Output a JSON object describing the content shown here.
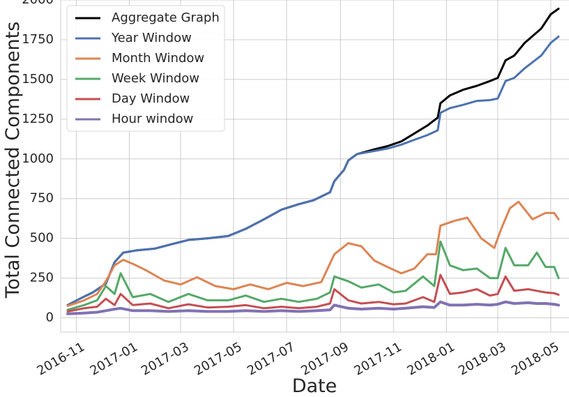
{
  "chart_data": {
    "type": "line",
    "xlabel": "Date",
    "ylabel": "Total Connected Components",
    "x_tick_labels": [
      "2016-11",
      "2017-01",
      "2017-03",
      "2017-05",
      "2017-07",
      "2017-09",
      "2017-11",
      "2018-01",
      "2018-03",
      "2018-05"
    ],
    "x_tick_dates": [
      "2016-11-01",
      "2017-01-01",
      "2017-03-01",
      "2017-05-01",
      "2017-07-01",
      "2017-09-01",
      "2017-11-01",
      "2018-01-01",
      "2018-03-01",
      "2018-05-01"
    ],
    "y_tick_labels": [
      "0",
      "250",
      "500",
      "750",
      "1000",
      "1250",
      "1500",
      "1750",
      "2000"
    ],
    "y_tick_values": [
      0,
      250,
      500,
      750,
      1000,
      1250,
      1500,
      1750,
      2000
    ],
    "xlim": [
      "2016-10-14",
      "2018-05-22"
    ],
    "ylim": [
      -90,
      2000
    ],
    "grid": true,
    "legend_position": "top-left",
    "series": [
      {
        "name": "Aggregate Graph",
        "color": "#000000",
        "points": [
          [
            "2016-10-22",
            80
          ],
          [
            "2016-11-05",
            120
          ],
          [
            "2016-11-20",
            160
          ],
          [
            "2016-12-05",
            215
          ],
          [
            "2016-12-15",
            350
          ],
          [
            "2016-12-25",
            410
          ],
          [
            "2017-01-10",
            425
          ],
          [
            "2017-01-30",
            435
          ],
          [
            "2017-02-20",
            465
          ],
          [
            "2017-03-10",
            490
          ],
          [
            "2017-04-01",
            500
          ],
          [
            "2017-04-25",
            515
          ],
          [
            "2017-05-15",
            560
          ],
          [
            "2017-06-05",
            620
          ],
          [
            "2017-06-25",
            680
          ],
          [
            "2017-07-15",
            715
          ],
          [
            "2017-08-01",
            740
          ],
          [
            "2017-08-20",
            790
          ],
          [
            "2017-08-25",
            860
          ],
          [
            "2017-09-05",
            930
          ],
          [
            "2017-09-10",
            990
          ],
          [
            "2017-09-20",
            1030
          ],
          [
            "2017-10-10",
            1060
          ],
          [
            "2017-10-25",
            1080
          ],
          [
            "2017-11-10",
            1110
          ],
          [
            "2017-11-25",
            1160
          ],
          [
            "2017-12-10",
            1210
          ],
          [
            "2017-12-22",
            1260
          ],
          [
            "2017-12-25",
            1350
          ],
          [
            "2018-01-05",
            1400
          ],
          [
            "2018-01-20",
            1435
          ],
          [
            "2018-02-05",
            1460
          ],
          [
            "2018-02-20",
            1490
          ],
          [
            "2018-03-01",
            1510
          ],
          [
            "2018-03-10",
            1620
          ],
          [
            "2018-03-20",
            1650
          ],
          [
            "2018-04-01",
            1730
          ],
          [
            "2018-04-20",
            1820
          ],
          [
            "2018-05-01",
            1910
          ],
          [
            "2018-05-10",
            1945
          ]
        ]
      },
      {
        "name": "Year Window",
        "color": "#4c72b0",
        "points": [
          [
            "2016-10-22",
            80
          ],
          [
            "2016-11-05",
            120
          ],
          [
            "2016-11-20",
            160
          ],
          [
            "2016-12-05",
            215
          ],
          [
            "2016-12-15",
            350
          ],
          [
            "2016-12-25",
            410
          ],
          [
            "2017-01-10",
            425
          ],
          [
            "2017-01-30",
            435
          ],
          [
            "2017-02-20",
            465
          ],
          [
            "2017-03-10",
            490
          ],
          [
            "2017-04-01",
            500
          ],
          [
            "2017-04-25",
            515
          ],
          [
            "2017-05-15",
            560
          ],
          [
            "2017-06-05",
            620
          ],
          [
            "2017-06-25",
            680
          ],
          [
            "2017-07-15",
            715
          ],
          [
            "2017-08-01",
            740
          ],
          [
            "2017-08-20",
            790
          ],
          [
            "2017-08-25",
            860
          ],
          [
            "2017-09-05",
            930
          ],
          [
            "2017-09-10",
            990
          ],
          [
            "2017-09-20",
            1030
          ],
          [
            "2017-10-10",
            1050
          ],
          [
            "2017-10-25",
            1065
          ],
          [
            "2017-11-10",
            1090
          ],
          [
            "2017-11-25",
            1120
          ],
          [
            "2017-12-10",
            1150
          ],
          [
            "2017-12-22",
            1180
          ],
          [
            "2017-12-25",
            1290
          ],
          [
            "2018-01-05",
            1320
          ],
          [
            "2018-01-20",
            1340
          ],
          [
            "2018-02-05",
            1365
          ],
          [
            "2018-02-20",
            1370
          ],
          [
            "2018-03-01",
            1380
          ],
          [
            "2018-03-10",
            1490
          ],
          [
            "2018-03-20",
            1510
          ],
          [
            "2018-04-01",
            1570
          ],
          [
            "2018-04-20",
            1650
          ],
          [
            "2018-05-01",
            1730
          ],
          [
            "2018-05-10",
            1770
          ]
        ]
      },
      {
        "name": "Month Window",
        "color": "#dd8452",
        "points": [
          [
            "2016-10-22",
            75
          ],
          [
            "2016-11-10",
            110
          ],
          [
            "2016-11-25",
            150
          ],
          [
            "2016-12-05",
            230
          ],
          [
            "2016-12-15",
            330
          ],
          [
            "2016-12-25",
            365
          ],
          [
            "2017-01-05",
            340
          ],
          [
            "2017-01-20",
            300
          ],
          [
            "2017-02-10",
            235
          ],
          [
            "2017-03-01",
            210
          ],
          [
            "2017-03-20",
            255
          ],
          [
            "2017-04-10",
            200
          ],
          [
            "2017-05-01",
            180
          ],
          [
            "2017-05-20",
            210
          ],
          [
            "2017-06-10",
            180
          ],
          [
            "2017-07-01",
            220
          ],
          [
            "2017-07-20",
            200
          ],
          [
            "2017-08-10",
            225
          ],
          [
            "2017-08-25",
            400
          ],
          [
            "2017-09-10",
            470
          ],
          [
            "2017-09-25",
            450
          ],
          [
            "2017-10-10",
            360
          ],
          [
            "2017-10-25",
            320
          ],
          [
            "2017-11-10",
            280
          ],
          [
            "2017-11-25",
            310
          ],
          [
            "2017-12-10",
            400
          ],
          [
            "2017-12-20",
            400
          ],
          [
            "2017-12-25",
            580
          ],
          [
            "2018-01-10",
            610
          ],
          [
            "2018-01-25",
            630
          ],
          [
            "2018-02-10",
            500
          ],
          [
            "2018-02-25",
            440
          ],
          [
            "2018-03-05",
            560
          ],
          [
            "2018-03-15",
            690
          ],
          [
            "2018-03-25",
            730
          ],
          [
            "2018-04-10",
            620
          ],
          [
            "2018-04-25",
            660
          ],
          [
            "2018-05-05",
            660
          ],
          [
            "2018-05-10",
            620
          ]
        ]
      },
      {
        "name": "Week Window",
        "color": "#55a868",
        "points": [
          [
            "2016-10-22",
            50
          ],
          [
            "2016-11-10",
            80
          ],
          [
            "2016-11-25",
            110
          ],
          [
            "2016-12-05",
            200
          ],
          [
            "2016-12-15",
            150
          ],
          [
            "2016-12-22",
            280
          ],
          [
            "2017-01-05",
            130
          ],
          [
            "2017-01-25",
            150
          ],
          [
            "2017-02-15",
            100
          ],
          [
            "2017-03-10",
            150
          ],
          [
            "2017-04-01",
            110
          ],
          [
            "2017-04-25",
            110
          ],
          [
            "2017-05-15",
            140
          ],
          [
            "2017-06-05",
            100
          ],
          [
            "2017-06-25",
            120
          ],
          [
            "2017-07-15",
            100
          ],
          [
            "2017-08-05",
            120
          ],
          [
            "2017-08-20",
            160
          ],
          [
            "2017-08-25",
            260
          ],
          [
            "2017-09-10",
            230
          ],
          [
            "2017-09-25",
            190
          ],
          [
            "2017-10-15",
            210
          ],
          [
            "2017-11-01",
            160
          ],
          [
            "2017-11-15",
            170
          ],
          [
            "2017-12-05",
            260
          ],
          [
            "2017-12-18",
            200
          ],
          [
            "2017-12-25",
            480
          ],
          [
            "2018-01-05",
            330
          ],
          [
            "2018-01-20",
            300
          ],
          [
            "2018-02-05",
            310
          ],
          [
            "2018-02-20",
            250
          ],
          [
            "2018-03-01",
            250
          ],
          [
            "2018-03-10",
            440
          ],
          [
            "2018-03-20",
            330
          ],
          [
            "2018-04-05",
            330
          ],
          [
            "2018-04-15",
            410
          ],
          [
            "2018-04-25",
            320
          ],
          [
            "2018-05-05",
            320
          ],
          [
            "2018-05-10",
            250
          ]
        ]
      },
      {
        "name": "Day Window",
        "color": "#c44e52",
        "points": [
          [
            "2016-10-22",
            40
          ],
          [
            "2016-11-10",
            60
          ],
          [
            "2016-11-25",
            70
          ],
          [
            "2016-12-05",
            120
          ],
          [
            "2016-12-15",
            80
          ],
          [
            "2016-12-22",
            150
          ],
          [
            "2017-01-05",
            80
          ],
          [
            "2017-01-25",
            90
          ],
          [
            "2017-02-15",
            60
          ],
          [
            "2017-03-10",
            85
          ],
          [
            "2017-04-01",
            65
          ],
          [
            "2017-04-25",
            70
          ],
          [
            "2017-05-15",
            80
          ],
          [
            "2017-06-05",
            60
          ],
          [
            "2017-06-25",
            70
          ],
          [
            "2017-07-15",
            60
          ],
          [
            "2017-08-05",
            70
          ],
          [
            "2017-08-20",
            90
          ],
          [
            "2017-08-25",
            180
          ],
          [
            "2017-09-10",
            110
          ],
          [
            "2017-09-25",
            90
          ],
          [
            "2017-10-15",
            100
          ],
          [
            "2017-11-01",
            85
          ],
          [
            "2017-11-15",
            90
          ],
          [
            "2017-12-05",
            130
          ],
          [
            "2017-12-18",
            100
          ],
          [
            "2017-12-25",
            270
          ],
          [
            "2018-01-05",
            150
          ],
          [
            "2018-01-20",
            160
          ],
          [
            "2018-02-05",
            180
          ],
          [
            "2018-02-20",
            140
          ],
          [
            "2018-03-01",
            150
          ],
          [
            "2018-03-10",
            260
          ],
          [
            "2018-03-20",
            170
          ],
          [
            "2018-04-05",
            180
          ],
          [
            "2018-04-15",
            170
          ],
          [
            "2018-04-25",
            160
          ],
          [
            "2018-05-05",
            155
          ],
          [
            "2018-05-10",
            145
          ]
        ]
      },
      {
        "name": "Hour window",
        "color": "#8172b3",
        "points": [
          [
            "2016-10-22",
            25
          ],
          [
            "2016-11-10",
            30
          ],
          [
            "2016-11-25",
            35
          ],
          [
            "2016-12-05",
            45
          ],
          [
            "2016-12-15",
            55
          ],
          [
            "2016-12-22",
            60
          ],
          [
            "2017-01-05",
            45
          ],
          [
            "2017-01-25",
            45
          ],
          [
            "2017-02-15",
            40
          ],
          [
            "2017-03-10",
            45
          ],
          [
            "2017-04-01",
            40
          ],
          [
            "2017-04-25",
            40
          ],
          [
            "2017-05-15",
            45
          ],
          [
            "2017-06-05",
            40
          ],
          [
            "2017-06-25",
            45
          ],
          [
            "2017-07-15",
            40
          ],
          [
            "2017-08-05",
            45
          ],
          [
            "2017-08-20",
            50
          ],
          [
            "2017-08-25",
            80
          ],
          [
            "2017-09-10",
            60
          ],
          [
            "2017-09-25",
            55
          ],
          [
            "2017-10-15",
            60
          ],
          [
            "2017-11-01",
            55
          ],
          [
            "2017-11-15",
            60
          ],
          [
            "2017-12-05",
            70
          ],
          [
            "2017-12-18",
            65
          ],
          [
            "2017-12-25",
            100
          ],
          [
            "2018-01-05",
            80
          ],
          [
            "2018-01-20",
            80
          ],
          [
            "2018-02-05",
            85
          ],
          [
            "2018-02-20",
            80
          ],
          [
            "2018-03-01",
            85
          ],
          [
            "2018-03-10",
            100
          ],
          [
            "2018-03-20",
            90
          ],
          [
            "2018-04-05",
            95
          ],
          [
            "2018-04-15",
            90
          ],
          [
            "2018-04-25",
            90
          ],
          [
            "2018-05-05",
            85
          ],
          [
            "2018-05-10",
            80
          ]
        ]
      }
    ]
  }
}
